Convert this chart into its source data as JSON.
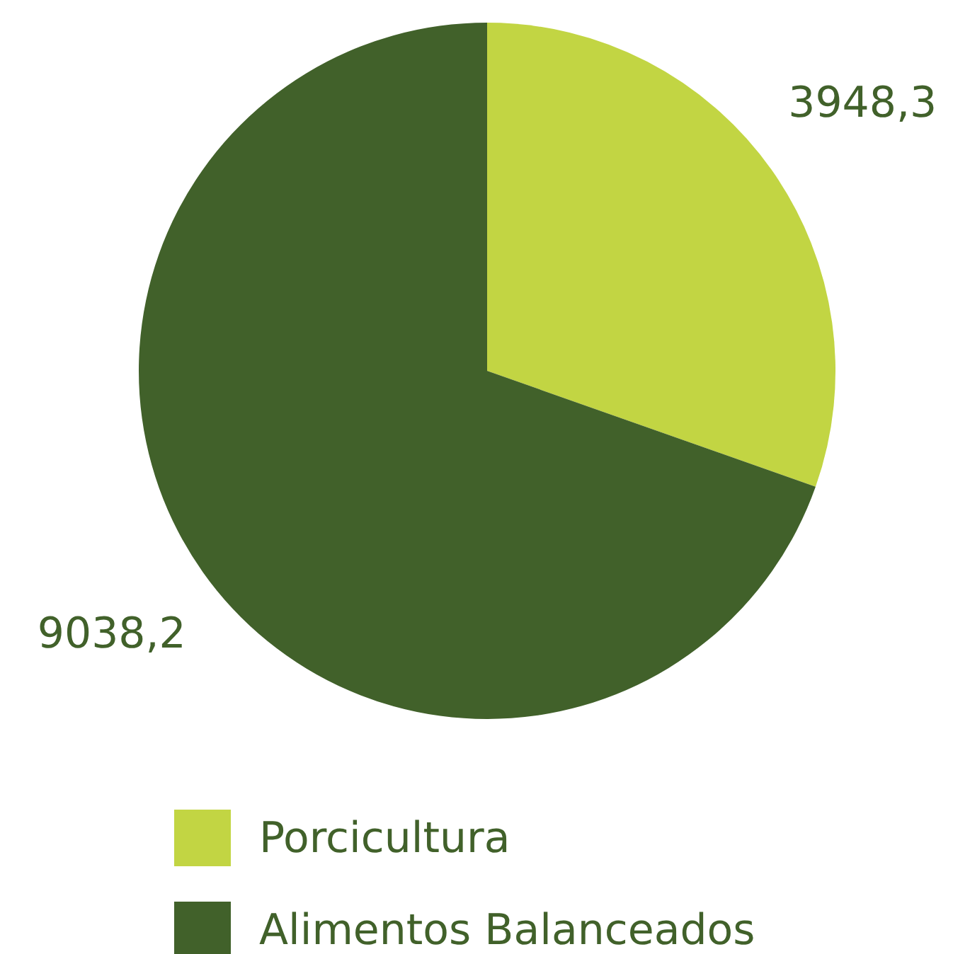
{
  "chart_data": {
    "type": "pie",
    "categories": [
      "Porcicultura",
      "Alimentos Balanceados"
    ],
    "values": [
      3948.3,
      9038.2
    ],
    "colors": [
      "#c2d543",
      "#41612a"
    ],
    "value_labels": [
      "3948,3",
      "9038,2"
    ],
    "legend": "bottom"
  }
}
